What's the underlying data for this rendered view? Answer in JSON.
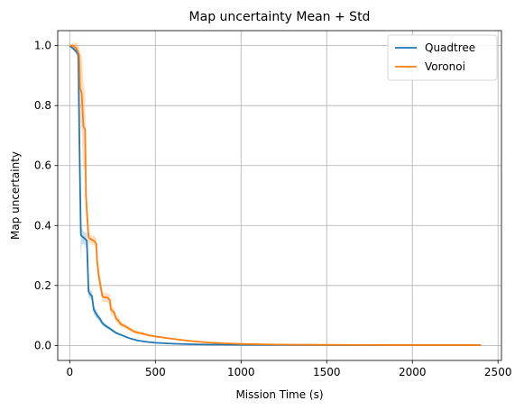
{
  "chart_data": {
    "type": "line",
    "title": "Map uncertainty Mean + Std",
    "xlabel": "Mission Time (s)",
    "ylabel": "Map uncertainty",
    "xlim": [
      -70,
      2520
    ],
    "ylim": [
      -0.05,
      1.05
    ],
    "xticks": [
      0,
      500,
      1000,
      1500,
      2000,
      2500
    ],
    "yticks": [
      0.0,
      0.2,
      0.4,
      0.6,
      0.8,
      1.0
    ],
    "xtick_labels": [
      "0",
      "500",
      "1000",
      "1500",
      "2000",
      "2500"
    ],
    "ytick_labels": [
      "0.0",
      "0.2",
      "0.4",
      "0.6",
      "0.8",
      "1.0"
    ],
    "grid": true,
    "legend_position": "top-right",
    "series": [
      {
        "name": "Quadtree",
        "color": "#1f77b4",
        "x": [
          0,
          20,
          40,
          50,
          55,
          60,
          65,
          70,
          80,
          90,
          100,
          110,
          120,
          130,
          140,
          150,
          160,
          175,
          190,
          210,
          230,
          250,
          270,
          300,
          330,
          360,
          400,
          450,
          500,
          600,
          700,
          800,
          1000,
          1200,
          1500,
          2000,
          2400
        ],
        "y": [
          1.0,
          0.99,
          0.98,
          0.97,
          0.75,
          0.55,
          0.37,
          0.365,
          0.36,
          0.355,
          0.35,
          0.18,
          0.17,
          0.165,
          0.12,
          0.11,
          0.1,
          0.09,
          0.075,
          0.065,
          0.058,
          0.05,
          0.042,
          0.035,
          0.028,
          0.022,
          0.016,
          0.012,
          0.009,
          0.006,
          0.004,
          0.003,
          0.002,
          0.0015,
          0.001,
          0.001,
          0.001
        ],
        "std": [
          0.0,
          0.005,
          0.01,
          0.01,
          0.02,
          0.05,
          0.09,
          0.03,
          0.02,
          0.02,
          0.03,
          0.02,
          0.015,
          0.015,
          0.015,
          0.015,
          0.012,
          0.01,
          0.008,
          0.007,
          0.006,
          0.005,
          0.004,
          0.003,
          0.003,
          0.002,
          0.002,
          0.001,
          0.001,
          0.001,
          0.001,
          0.0005,
          0.0005,
          0.0,
          0.0,
          0.0,
          0.0
        ]
      },
      {
        "name": "Voronoi",
        "color": "#ff7f0e",
        "x": [
          0,
          20,
          40,
          55,
          60,
          65,
          70,
          80,
          90,
          95,
          100,
          110,
          120,
          140,
          155,
          160,
          170,
          180,
          190,
          200,
          220,
          235,
          240,
          250,
          260,
          270,
          280,
          300,
          320,
          350,
          380,
          420,
          460,
          500,
          600,
          700,
          800,
          900,
          1000,
          1200,
          1500,
          2000,
          2400
        ],
        "y": [
          1.0,
          1.0,
          0.99,
          0.97,
          0.86,
          0.85,
          0.84,
          0.73,
          0.72,
          0.5,
          0.45,
          0.36,
          0.355,
          0.35,
          0.34,
          0.28,
          0.23,
          0.2,
          0.165,
          0.16,
          0.16,
          0.15,
          0.12,
          0.115,
          0.11,
          0.09,
          0.085,
          0.07,
          0.065,
          0.055,
          0.045,
          0.04,
          0.034,
          0.03,
          0.022,
          0.015,
          0.01,
          0.007,
          0.005,
          0.003,
          0.002,
          0.001,
          0.001
        ],
        "std": [
          0.0,
          0.01,
          0.02,
          0.03,
          0.1,
          0.12,
          0.13,
          0.15,
          0.12,
          0.06,
          0.05,
          0.02,
          0.015,
          0.015,
          0.02,
          0.03,
          0.03,
          0.02,
          0.015,
          0.015,
          0.015,
          0.02,
          0.02,
          0.015,
          0.015,
          0.012,
          0.012,
          0.01,
          0.008,
          0.007,
          0.006,
          0.005,
          0.004,
          0.003,
          0.002,
          0.002,
          0.001,
          0.001,
          0.001,
          0.0005,
          0.0,
          0.0,
          0.0
        ]
      }
    ]
  }
}
